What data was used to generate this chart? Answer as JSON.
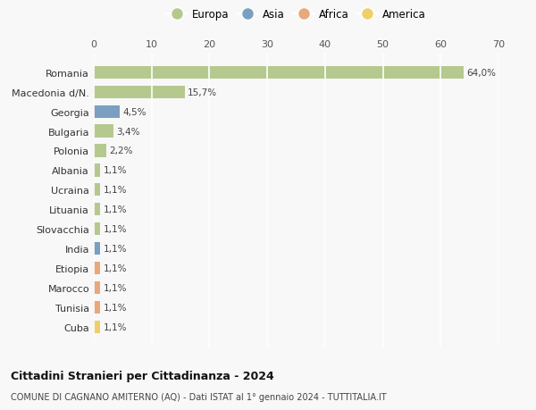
{
  "countries": [
    "Romania",
    "Macedonia d/N.",
    "Georgia",
    "Bulgaria",
    "Polonia",
    "Albania",
    "Ucraina",
    "Lituania",
    "Slovacchia",
    "India",
    "Etiopia",
    "Marocco",
    "Tunisia",
    "Cuba"
  ],
  "values": [
    64.0,
    15.7,
    4.5,
    3.4,
    2.2,
    1.1,
    1.1,
    1.1,
    1.1,
    1.1,
    1.1,
    1.1,
    1.1,
    1.1
  ],
  "labels": [
    "64,0%",
    "15,7%",
    "4,5%",
    "3,4%",
    "2,2%",
    "1,1%",
    "1,1%",
    "1,1%",
    "1,1%",
    "1,1%",
    "1,1%",
    "1,1%",
    "1,1%",
    "1,1%"
  ],
  "continents": [
    "Europa",
    "Europa",
    "Asia",
    "Europa",
    "Europa",
    "Europa",
    "Europa",
    "Europa",
    "Europa",
    "Asia",
    "Africa",
    "Africa",
    "Africa",
    "America"
  ],
  "continent_colors": {
    "Europa": "#b5c98e",
    "Asia": "#7a9fc0",
    "Africa": "#e8a87c",
    "America": "#f0cf6a"
  },
  "legend_order": [
    "Europa",
    "Asia",
    "Africa",
    "America"
  ],
  "title": "Cittadini Stranieri per Cittadinanza - 2024",
  "subtitle": "COMUNE DI CAGNANO AMITERNO (AQ) - Dati ISTAT al 1° gennaio 2024 - TUTTITALIA.IT",
  "xlim": [
    0,
    70
  ],
  "xticks": [
    0,
    10,
    20,
    30,
    40,
    50,
    60,
    70
  ],
  "background_color": "#f8f8f8",
  "grid_color": "#ffffff",
  "bar_height": 0.65
}
